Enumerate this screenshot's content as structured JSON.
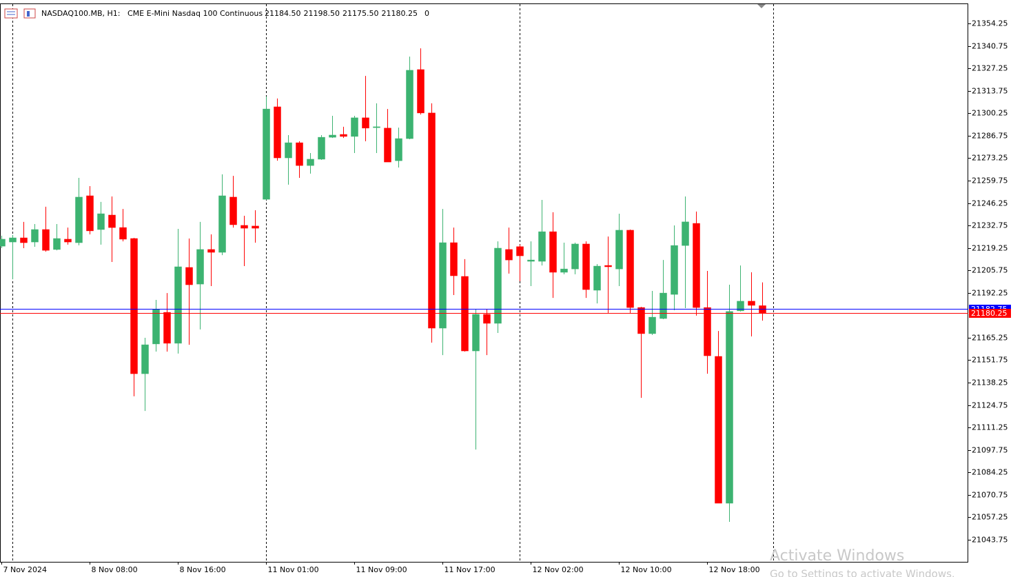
{
  "header": {
    "symbol": "NASDAQ100.MB, H1:",
    "description": "CME E-Mini Nasdaq 100 Continuous",
    "ohlc_labels": [
      "21184.50",
      "21198.50",
      "21175.50",
      "21180.25"
    ],
    "volume": 0
  },
  "watermark": {
    "title": "Activate Windows",
    "subtitle": "Go to Settings to activate Windows."
  },
  "chart_data": {
    "type": "candlestick",
    "categories": [
      "7 Nov 2024",
      null,
      null,
      null,
      null,
      null,
      null,
      null,
      "8 Nov 08:00",
      null,
      null,
      null,
      null,
      null,
      null,
      null,
      "8 Nov 16:00",
      null,
      null,
      null,
      null,
      null,
      null,
      null,
      "11 Nov 01:00",
      null,
      null,
      null,
      null,
      null,
      null,
      null,
      "11 Nov 09:00",
      null,
      null,
      null,
      null,
      null,
      null,
      null,
      "11 Nov 17:00",
      null,
      null,
      null,
      null,
      null,
      null,
      null,
      "12 Nov 02:00",
      null,
      null,
      null,
      null,
      null,
      null,
      null,
      "12 Nov 10:00",
      null,
      null,
      null,
      null,
      null,
      null,
      null,
      "12 Nov 18:00",
      null,
      null,
      null,
      null,
      null
    ],
    "open": [
      21220.3,
      21222.8,
      21225.3,
      21222.8,
      21230.3,
      21218.3,
      21224.5,
      21222.4,
      21250.6,
      21230.3,
      21239.0,
      21231.5,
      21224.9,
      21143.6,
      21161.5,
      21180.5,
      21161.9,
      21207.5,
      21197.5,
      21218.3,
      21216.6,
      21249.8,
      21232.8,
      21232.4,
      21248.5,
      21304.1,
      21273.4,
      21282.5,
      21268.8,
      21272.6,
      21285.8,
      21287.5,
      21286.3,
      21297.5,
      21291.6,
      21291.3,
      21271.7,
      21285.0,
      21326.5,
      21300.4,
      21171.0,
      21222.4,
      21202.1,
      21157.3,
      21179.3,
      21173.9,
      21218.3,
      21220.0,
      21211.2,
      21211.2,
      21229.0,
      21204.6,
      21206.6,
      21221.6,
      21193.8,
      21208.7,
      21206.6,
      21229.9,
      21183.4,
      21167.7,
      21176.8,
      21191.3,
      21220.7,
      21234.0,
      21183.4,
      21154.0,
      21065.7,
      21181.4,
      21187.2,
      21184.5
    ],
    "high": [
      21226.6,
      21227.0,
      21234.9,
      21233.6,
      21244.0,
      21233.6,
      21231.5,
      21261.4,
      21256.4,
      21246.9,
      21250.2,
      21242.7,
      21225.3,
      21165.2,
      21188.0,
      21192.1,
      21230.7,
      21224.9,
      21234.9,
      21227.4,
      21263.5,
      21262.6,
      21238.6,
      21241.9,
      21310.3,
      21309.1,
      21287.1,
      21283.4,
      21276.3,
      21287.1,
      21298.7,
      21292.1,
      21298.7,
      21322.7,
      21306.2,
      21302.8,
      21291.6,
      21334.3,
      21339.3,
      21306.2,
      21242.7,
      21231.5,
      21212.5,
      21182.6,
      21182.6,
      21223.2,
      21231.5,
      21221.2,
      21223.2,
      21248.1,
      21240.7,
      21222.4,
      21222.4,
      21223.2,
      21209.5,
      21226.1,
      21239.8,
      21230.3,
      21183.8,
      21193.4,
      21212.0,
      21232.8,
      21250.2,
      21241.1,
      21205.4,
      21169.3,
      21197.1,
      21208.7,
      21204.6,
      21198.5
    ],
    "low": [
      21219.1,
      21200.4,
      21219.1,
      21219.9,
      21217.0,
      21217.8,
      21221.2,
      21220.8,
      21227.4,
      21221.2,
      21210.8,
      21223.2,
      21130.0,
      21121.2,
      21156.9,
      21156.9,
      21155.7,
      21161.0,
      21170.2,
      21196.3,
      21214.9,
      21231.5,
      21208.3,
      21222.4,
      21248.1,
      21271.7,
      21257.3,
      21261.4,
      21263.9,
      21272.2,
      21285.4,
      21285.4,
      21276.3,
      21283.4,
      21276.3,
      21270.9,
      21267.6,
      21284.6,
      21299.5,
      21162.3,
      21154.8,
      21190.9,
      21156.9,
      21098.0,
      21154.8,
      21168.1,
      21203.8,
      21199.2,
      21196.3,
      21208.7,
      21189.2,
      21203.4,
      21203.4,
      21189.2,
      21185.9,
      21179.7,
      21196.3,
      21179.7,
      21129.1,
      21166.9,
      21176.4,
      21181.8,
      21183.0,
      21178.5,
      21143.6,
      21065.7,
      21054.5,
      21181.0,
      21166.0,
      21175.5
    ],
    "close": [
      21224.5,
      21225.3,
      21222.4,
      21230.3,
      21217.8,
      21224.9,
      21222.8,
      21249.8,
      21229.5,
      21239.8,
      21231.5,
      21224.5,
      21143.6,
      21161.0,
      21182.2,
      21161.9,
      21207.9,
      21197.1,
      21218.3,
      21216.6,
      21250.6,
      21233.2,
      21231.1,
      21231.1,
      21302.8,
      21273.4,
      21282.5,
      21268.8,
      21272.6,
      21285.8,
      21287.1,
      21286.3,
      21297.5,
      21291.3,
      21292.1,
      21270.9,
      21285.0,
      21326.1,
      21300.4,
      21171.0,
      21222.4,
      21202.5,
      21157.3,
      21179.3,
      21173.9,
      21219.1,
      21212.0,
      21214.5,
      21212.0,
      21229.0,
      21204.6,
      21206.6,
      21221.6,
      21194.2,
      21208.3,
      21207.9,
      21229.9,
      21183.4,
      21167.7,
      21177.6,
      21192.1,
      21220.7,
      21234.9,
      21183.4,
      21154.4,
      21065.7,
      21181.0,
      21187.2,
      21184.7,
      21180.25
    ],
    "up_color": "#3cb371",
    "down_color": "#ff0000",
    "ylim": [
      21030.45,
      21366.28
    ],
    "yticks": [
      21354.25,
      21340.75,
      21327.25,
      21313.75,
      21300.25,
      21286.75,
      21273.25,
      21259.75,
      21246.25,
      21232.75,
      21219.25,
      21205.75,
      21192.25,
      21165.25,
      21151.75,
      21138.25,
      21124.75,
      21111.25,
      21097.75,
      21084.25,
      21070.75,
      21057.25,
      21043.75
    ],
    "ask": 21182.75,
    "ask_color": "#0000ff",
    "bid": 21180.25,
    "bid_color": "#ff0000"
  }
}
